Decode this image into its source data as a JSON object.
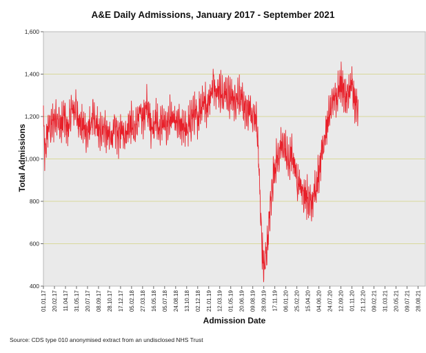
{
  "chart_data": {
    "type": "line",
    "title": "A&E Daily Admissions, January 2017 - September 2021",
    "xlabel": "Admission Date",
    "ylabel": "Total Admissions",
    "ylim": [
      400,
      1600
    ],
    "yticks": [
      "400",
      "600",
      "800",
      "1,000",
      "1,200",
      "1,400",
      "1,600"
    ],
    "xticks": [
      "01.01.17",
      "20.02.17",
      "11.04.17",
      "31.05.17",
      "20.07.17",
      "08.09.17",
      "28.10.17",
      "17.12.17",
      "05.02.18",
      "27.03.18",
      "16.05.18",
      "05.07.18",
      "24.08.18",
      "13.10.18",
      "02.12.18",
      "21.01.19",
      "12.03.19",
      "01.05.19",
      "20.06.19",
      "09.08.19",
      "28.09.19",
      "17.11.19",
      "06.01.20",
      "25.02.20",
      "15.04.20",
      "04.06.20",
      "24.07.20",
      "12.09.20",
      "01.11.20",
      "21.12.20",
      "09.02.21",
      "31.03.21",
      "20.05.21",
      "09.07.21",
      "28.08.21"
    ],
    "grid": "horizontal",
    "legend": "none",
    "line_color": "#e8202a",
    "plot_background": "#eaeaea",
    "gridline_color": "#d8d89a",
    "series": [
      {
        "x_start": "2017-01-01",
        "x_step_days": 7,
        "values": [
          1180,
          1000,
          1100,
          1150,
          1160,
          1150,
          1170,
          1180,
          1200,
          1210,
          1180,
          1150,
          1170,
          1200,
          1190,
          1160,
          1140,
          1170,
          1230,
          1240,
          1230,
          1250,
          1200,
          1190,
          1170,
          1150,
          1160,
          1140,
          1120,
          1130,
          1150,
          1170,
          1200,
          1180,
          1160,
          1150,
          1120,
          1130,
          1150,
          1160,
          1140,
          1120,
          1110,
          1100,
          1100,
          1120,
          1130,
          1150,
          1120,
          1100,
          1130,
          1150,
          1140,
          1120,
          1130,
          1160,
          1180,
          1170,
          1150,
          1130,
          1160,
          1180,
          1200,
          1220,
          1210,
          1200,
          1230,
          1250,
          1220,
          1180,
          1150,
          1160,
          1170,
          1190,
          1160,
          1140,
          1160,
          1180,
          1170,
          1150,
          1160,
          1180,
          1200,
          1190,
          1180,
          1170,
          1160,
          1180,
          1160,
          1140,
          1150,
          1170,
          1150,
          1130,
          1150,
          1170,
          1190,
          1220,
          1210,
          1200,
          1190,
          1230,
          1250,
          1270,
          1280,
          1260,
          1250,
          1280,
          1300,
          1320,
          1350,
          1360,
          1330,
          1320,
          1340,
          1320,
          1290,
          1300,
          1330,
          1310,
          1290,
          1280,
          1300,
          1290,
          1270,
          1290,
          1310,
          1300,
          1280,
          1260,
          1250,
          1230,
          1210,
          1230,
          1240,
          1200,
          1220,
          1180,
          1200,
          1100,
          900,
          700,
          550,
          480,
          520,
          600,
          670,
          760,
          850,
          920,
          960,
          990,
          1010,
          1030,
          1050,
          1060,
          1070,
          1040,
          1000,
          980,
          1000,
          1030,
          1000,
          960,
          920,
          890,
          880,
          870,
          860,
          840,
          830,
          820,
          790,
          800,
          780,
          820,
          860,
          880,
          920,
          960,
          1020,
          1060,
          1100,
          1130,
          1160,
          1200,
          1220,
          1240,
          1300,
          1310,
          1290,
          1310,
          1350,
          1360,
          1340,
          1300,
          1290,
          1280,
          1320,
          1330,
          1350,
          1300,
          1260,
          1250,
          1270
        ]
      }
    ],
    "source": "Source: CDS type 010 anonymised extract from an undisclosed NHS Trust"
  }
}
